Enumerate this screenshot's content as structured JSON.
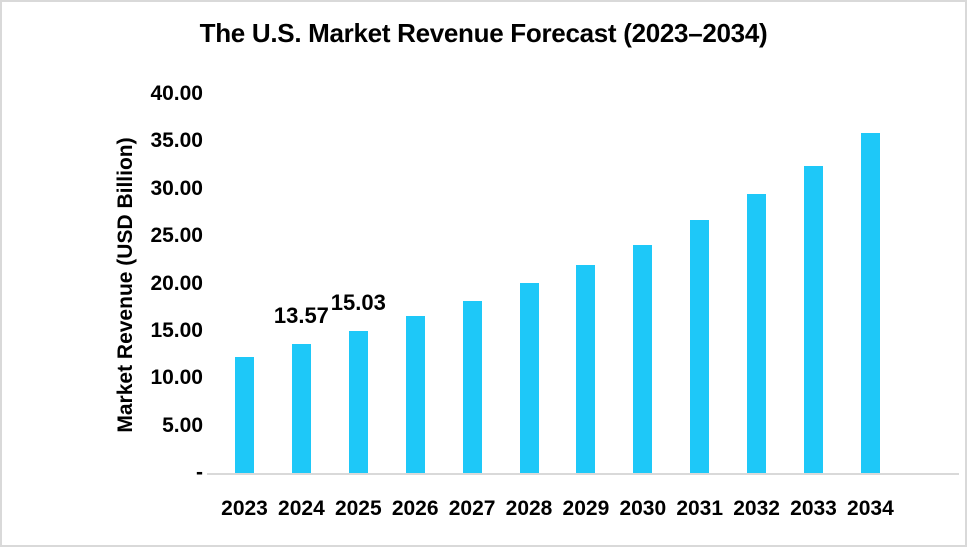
{
  "colors": {
    "bar": "#1EC8F8",
    "axis_line": "#D9D9D9",
    "border": "#D9D9D9",
    "text": "#000000",
    "background": "#FFFFFF"
  },
  "chart_data": {
    "type": "bar",
    "title": "The U.S. Market Revenue Forecast (2023–2034)",
    "xlabel": "",
    "ylabel": "Market Revenue (USD Billion)",
    "categories": [
      "2023",
      "2024",
      "2025",
      "2026",
      "2027",
      "2028",
      "2029",
      "2030",
      "2031",
      "2032",
      "2033",
      "2034"
    ],
    "values": [
      12.25,
      13.57,
      15.03,
      16.6,
      18.2,
      20.1,
      22.0,
      24.1,
      26.7,
      29.4,
      32.4,
      35.9
    ],
    "data_labels": [
      "",
      "13.57",
      "15.03",
      "",
      "",
      "",
      "",
      "",
      "",
      "",
      "",
      ""
    ],
    "ylim": [
      0,
      40
    ],
    "y_tick_labels": [
      "40.00",
      "35.00",
      "30.00",
      "25.00",
      "20.00",
      "15.00",
      "10.00",
      "5.00",
      "-"
    ],
    "y_tick_values": [
      40,
      35,
      30,
      25,
      20,
      15,
      10,
      5,
      0
    ],
    "grid": false,
    "legend": false,
    "bar_color": "#1EC8F8"
  }
}
